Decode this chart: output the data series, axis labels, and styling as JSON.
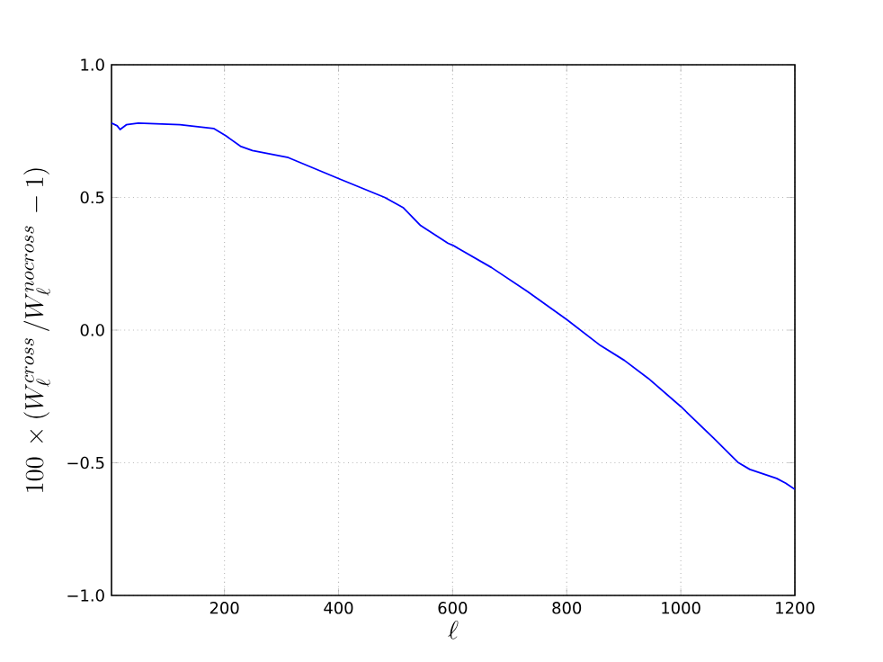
{
  "chart_data": {
    "type": "line",
    "xlabel": "\\ell",
    "ylabel": "100\\,\\times(W_\\ell^{cross}\\,/W_\\ell^{nocross}\\,-1)",
    "xlim": [
      2,
      1200
    ],
    "ylim": [
      -1.0,
      1.0
    ],
    "xticks": [
      200,
      400,
      600,
      800,
      1000,
      1200
    ],
    "yticks": [
      {
        "value": -1.0,
        "label": "−1.0"
      },
      {
        "value": -0.5,
        "label": "−0.5"
      },
      {
        "value": 0.0,
        "label": "0.0"
      },
      {
        "value": 0.5,
        "label": "0.5"
      },
      {
        "value": 1.0,
        "label": "1.0"
      }
    ],
    "grid": true,
    "marker": "none",
    "line_style": "solid",
    "series": [
      {
        "color": "#0000ff",
        "x": [
          2,
          12,
          17,
          28,
          49,
          122,
          181,
          202,
          228,
          249,
          312,
          400,
          481,
          513,
          544,
          592,
          600,
          668,
          731,
          800,
          859,
          901,
          943,
          1000,
          1058,
          1100,
          1121,
          1168,
          1184,
          1200
        ],
        "values": [
          0.78,
          0.77,
          0.756,
          0.774,
          0.78,
          0.774,
          0.76,
          0.733,
          0.693,
          0.677,
          0.65,
          0.571,
          0.5,
          0.462,
          0.394,
          0.327,
          0.32,
          0.236,
          0.146,
          0.04,
          -0.058,
          -0.114,
          -0.182,
          -0.288,
          -0.408,
          -0.498,
          -0.525,
          -0.559,
          -0.577,
          -0.6
        ]
      }
    ]
  }
}
